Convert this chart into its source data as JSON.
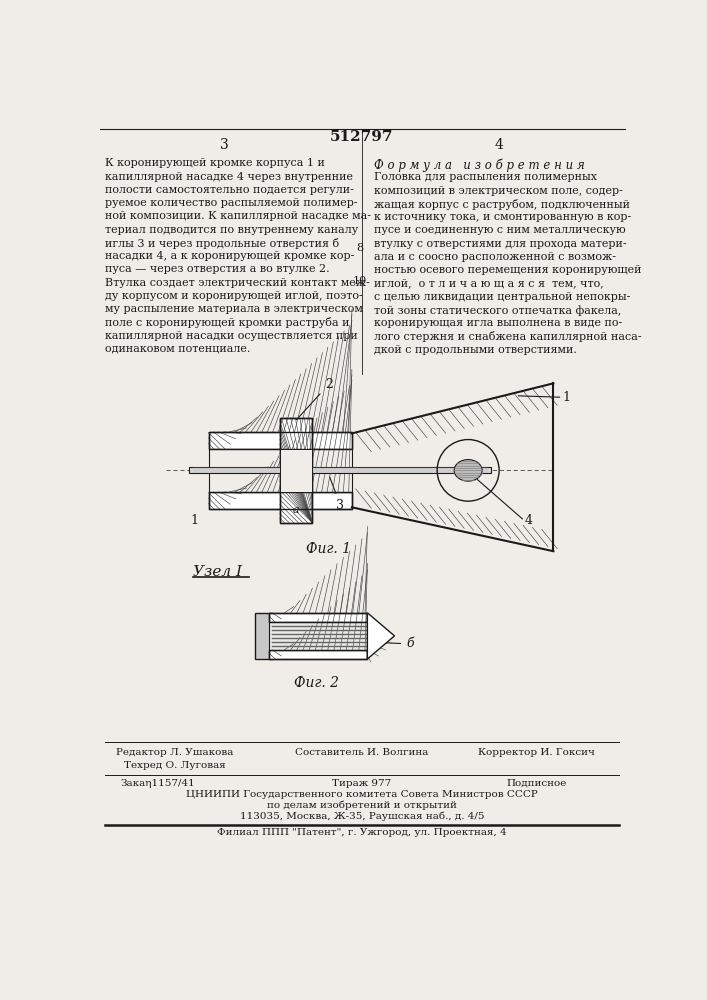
{
  "page_num_left": "3",
  "page_num_right": "4",
  "page_title": "512797",
  "bg_color": "#f0ede8",
  "text_color": "#1a1a1a",
  "left_col_text": [
    "К коронирующей кромке корпуса 1 и",
    "капиллярной насадке 4 через внутренние",
    "полости самостоятельно подается регули-",
    "руемое количество распыляемой полимер-",
    "ной композиции. К капиллярной насадке ма-",
    "териал подводится по внутреннему каналу",
    "иглы 3 и через продольные отверстия б",
    "насадки 4, а к коронирующей кромке кор-",
    "пуса — через отверстия а во втулке 2.",
    "Втулка создает электрический контакт меж-",
    "ду корпусом и коронирующей иглой, поэто-",
    "му распыление материала в электрическом",
    "поле с коронирующей кромки раструба и",
    "капиллярной насадки осуществляется при",
    "одинаковом потенциале."
  ],
  "right_col_header": "Ф о р м у л а   и з о б р е т е н и я",
  "right_col_text": [
    "Головка для распыления полимерных",
    "композиций в электрическом поле, содер-",
    "жащая корпус с раструбом, подключенный",
    "к источнику тока, и смонтированную в кор-",
    "пусе и соединенную с ним металлическую",
    "втулку с отверстиями для прохода матери-",
    "ала и с соосно расположенной с возмож-",
    "ностью осевого перемещения коронирующей",
    "иглой,  о т л и ч а ю щ а я с я  тем, что,",
    "с целью ликвидации центральной непокры-",
    "той зоны статического отпечатка факела,",
    "коронирующая игла выполнена в виде по-",
    "лого стержня и снабжена капиллярной наса-",
    "дкой с продольными отверстиями."
  ],
  "line_number_8": "8",
  "line_number_10": "10",
  "fig1_label": "Фиг. 1",
  "fig2_label": "Фиг. 2",
  "node_label": "Узел I",
  "footer_sestavitel": "Составитель И. Волгина",
  "footer_editor": "Редактор Л. Ушакова",
  "footer_tekhred": "Техред О. Луговая",
  "footer_korrektor": "Корректор И. Гоксич",
  "footer_zakaz": "Закаη1157/41",
  "footer_tirazh": "Тираж 977",
  "footer_podpisnoe": "Подписное",
  "footer_tsniipi": "ЦНИИПИ Государственного комитета Совета Министров СССР",
  "footer_po_delam": "по делам изобретений и открытий",
  "footer_address": "113035, Москва, Ж-35, Раушская наб., д. 4/5",
  "footer_filial": "Филиал ППП \"Патент\", г. Ужгород, ул. Проектная, 4"
}
